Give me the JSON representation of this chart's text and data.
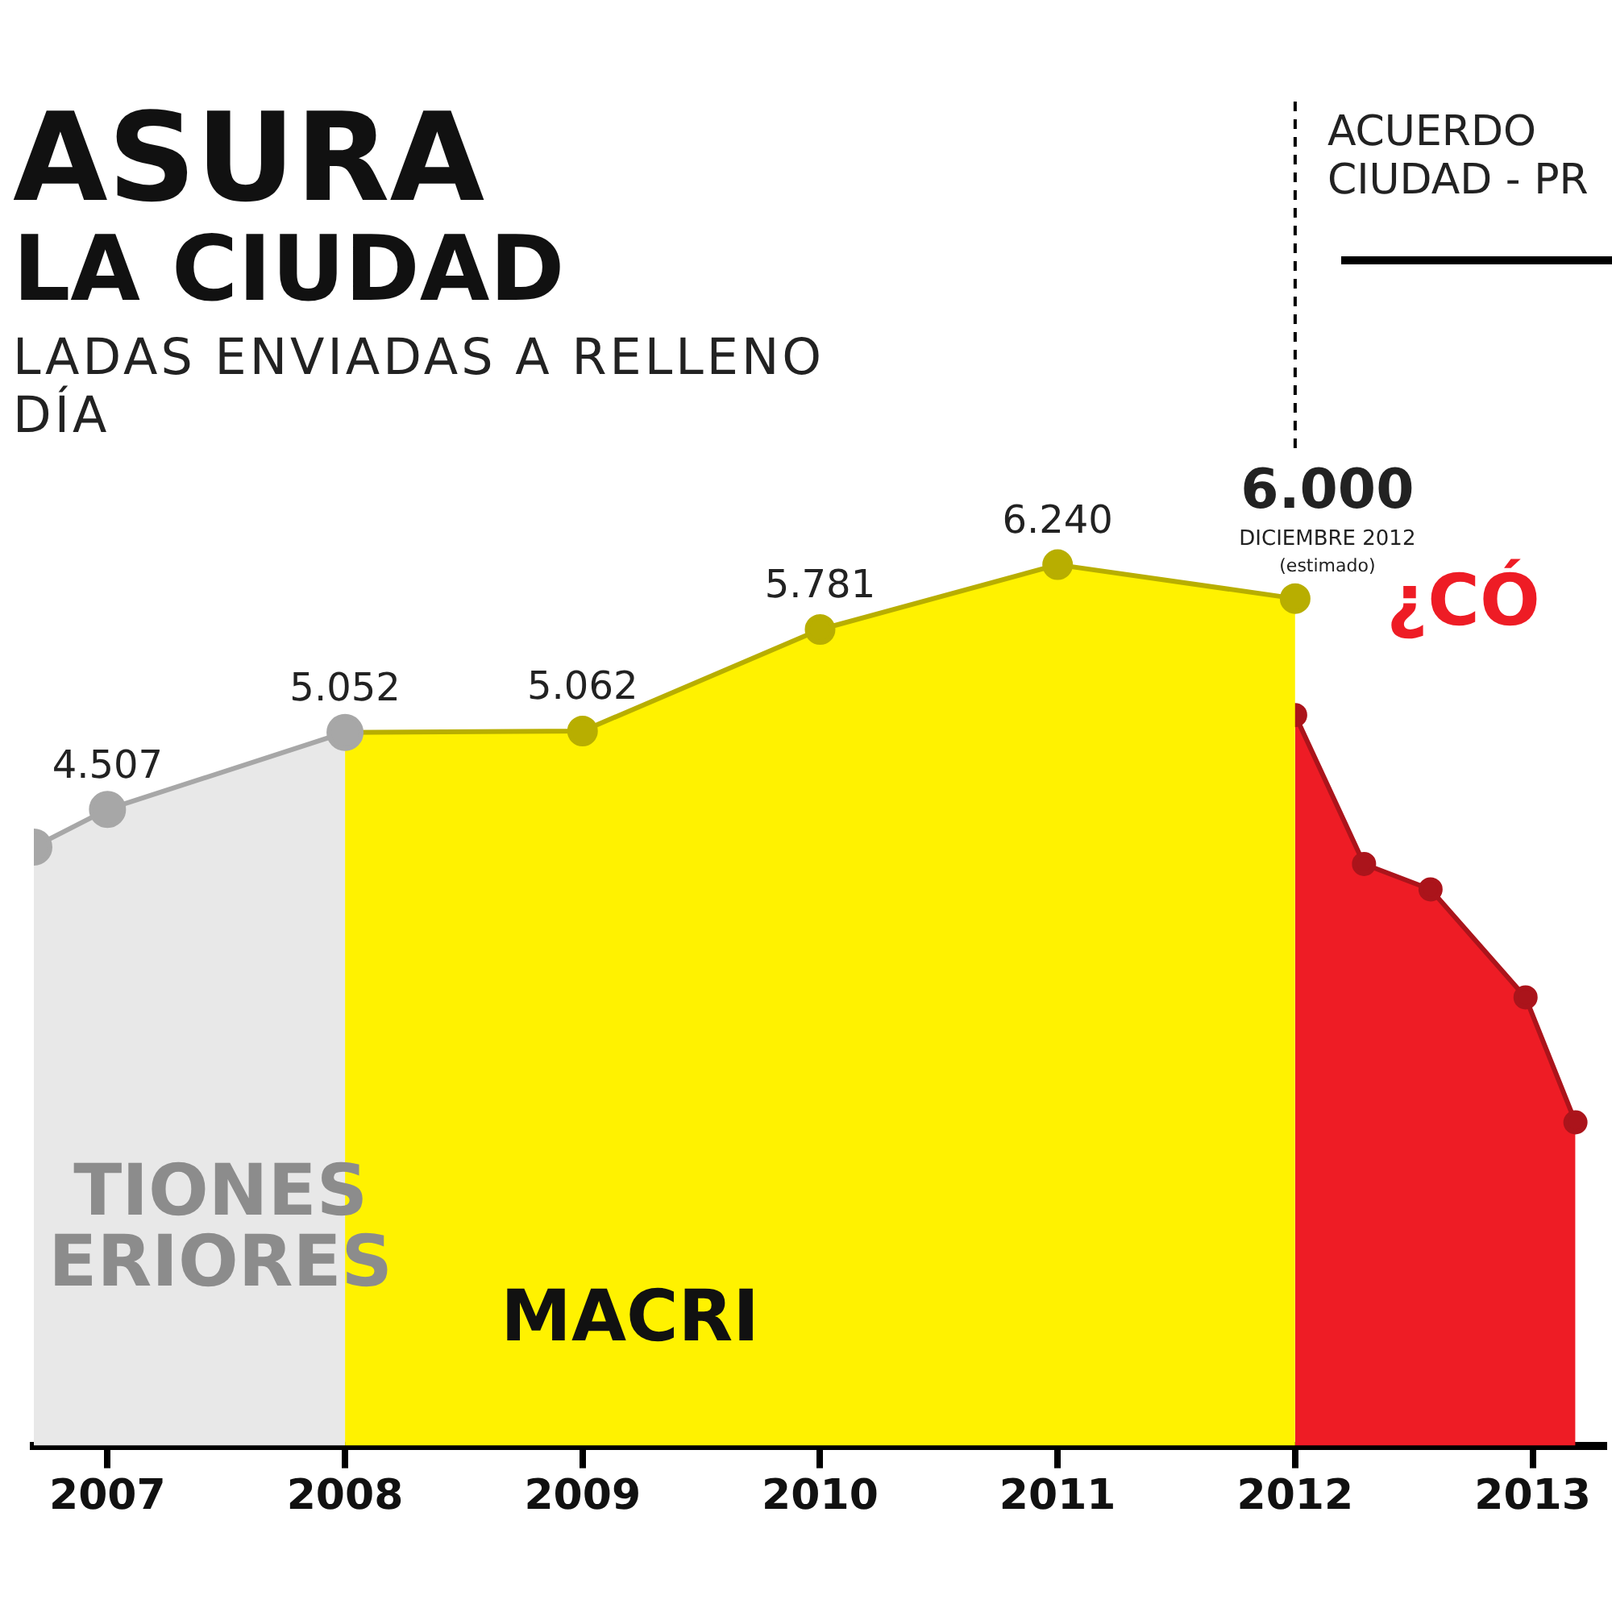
{
  "chart_data": {
    "type": "area",
    "title": "ASURA",
    "subtitle": "LA CIUDAD",
    "xlim": [
      2006.69,
      2013.3
    ],
    "xticks": [
      2007,
      2008,
      2009,
      2010,
      2011,
      2012,
      2013
    ],
    "series": [
      {
        "name": "TIONES\nERIORES",
        "color": "#e8e8e8",
        "x": [
          2006.69,
          2007,
          2008
        ],
        "values": [
          4240,
          4507,
          5052
        ],
        "value_labels": [
          null,
          "4.507",
          null
        ]
      },
      {
        "name": "MACRI",
        "color": "#fff200",
        "x": [
          2008,
          2009,
          2010,
          2011,
          2012
        ],
        "values": [
          5052,
          5062,
          5781,
          6240,
          6000
        ],
        "value_labels": [
          "5.052",
          "5.062",
          "5.781",
          "6.240",
          "6.000"
        ]
      },
      {
        "name": "¿CÓ",
        "color": "#ee1c25",
        "x": [
          2012,
          2012.29,
          2012.57,
          2012.97,
          2013.18
        ],
        "values": [
          5175,
          4120,
          3940,
          3175,
          2290
        ]
      }
    ],
    "ref_lines": [
      {
        "axis": "x",
        "value": 2012,
        "label": "ACUERDO\nCIUDAD - PR",
        "line_style": "dashed",
        "color": "#000000"
      }
    ],
    "annotations": [
      "LADAS ENVIADAS A RELLENO\nDÍA",
      {
        "text": "DICIEMBRE 2012\n(estimado)",
        "x": 2012,
        "y": 6000
      }
    ],
    "marker": "circle",
    "grid": false,
    "legend": false
  }
}
